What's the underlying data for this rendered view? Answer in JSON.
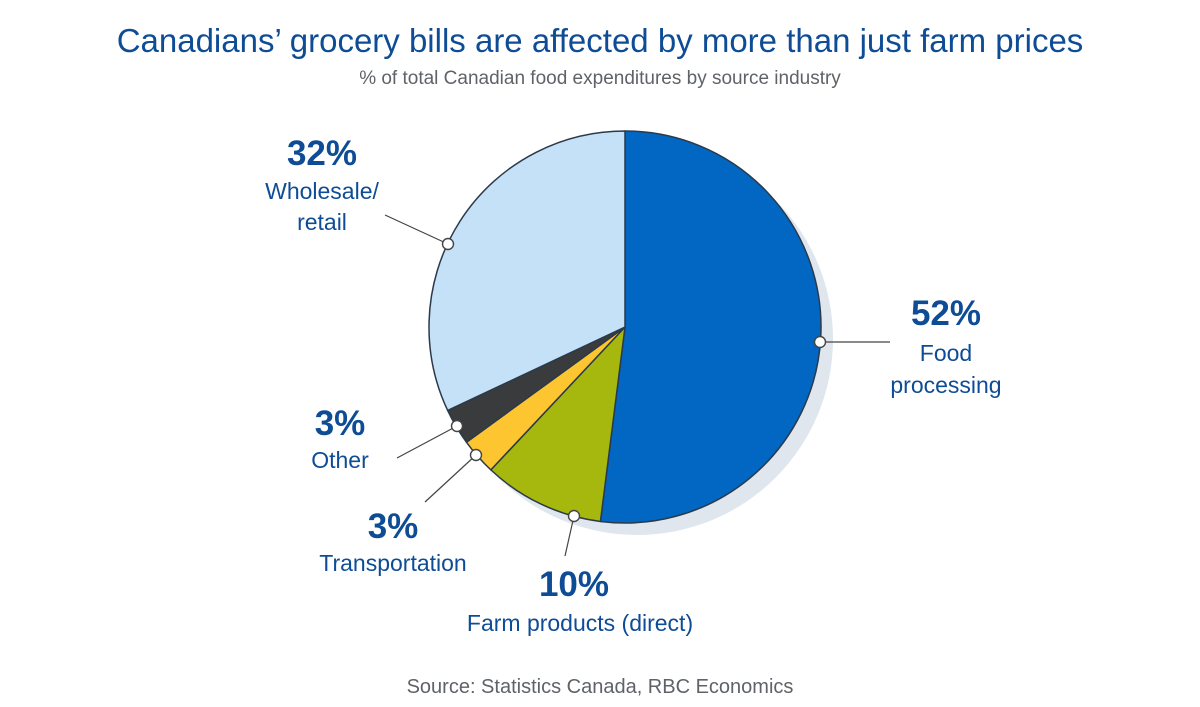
{
  "title": "Canadians’ grocery bills are affected by more than just farm prices",
  "subtitle": "% of total Canadian food expenditures by source industry",
  "source": "Source: Statistics Canada, RBC Economics",
  "chart_data": {
    "type": "pie",
    "title": "Canadians’ grocery bills are affected by more than just farm prices",
    "subtitle": "% of total Canadian food expenditures by source industry",
    "unit": "%",
    "slices": [
      {
        "name": "Food processing",
        "value": 52,
        "label": "52%",
        "color": "#0167c2",
        "label_lines": [
          "Food",
          "processing"
        ]
      },
      {
        "name": "Farm products (direct)",
        "value": 10,
        "label": "10%",
        "color": "#a6b80e",
        "label_lines": [
          "Farm products (direct)"
        ]
      },
      {
        "name": "Transportation",
        "value": 3,
        "label": "3%",
        "color": "#fdc52f",
        "label_lines": [
          "Transportation"
        ]
      },
      {
        "name": "Other",
        "value": 3,
        "label": "3%",
        "color": "#3a3b3d",
        "label_lines": [
          "Other"
        ]
      },
      {
        "name": "Wholesale/retail",
        "value": 32,
        "label": "32%",
        "color": "#c4e1f8",
        "label_lines": [
          "Wholesale/",
          "retail"
        ]
      }
    ],
    "legend": "none"
  }
}
